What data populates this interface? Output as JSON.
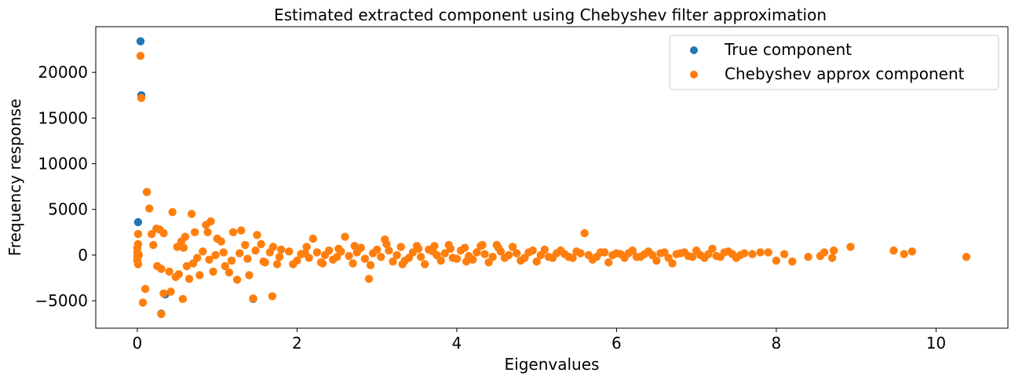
{
  "chart_data": {
    "type": "scatter",
    "title": "Estimated extracted component using Chebyshev filter approximation",
    "xlabel": "Eigenvalues",
    "ylabel": "Frequency response",
    "xlim": [
      -0.52,
      10.9
    ],
    "ylim": [
      -8000,
      25000
    ],
    "xticks": [
      0,
      2,
      4,
      6,
      8,
      10
    ],
    "yticks": [
      -5000,
      0,
      5000,
      10000,
      15000,
      20000
    ],
    "ytick_labels": [
      "−5000",
      "0",
      "5000",
      "10000",
      "15000",
      "20000"
    ],
    "grid": false,
    "legend_position": "top-right",
    "series": [
      {
        "name": "True component",
        "color": "#1f77b4",
        "points": [
          [
            0.04,
            23400
          ],
          [
            0.05,
            17500
          ],
          [
            0.12,
            6900
          ],
          [
            0.01,
            3600
          ],
          [
            0.35,
            -4300
          ],
          [
            1.45,
            -4800
          ],
          [
            0.3,
            -6400
          ]
        ]
      },
      {
        "name": "Chebyshev approx component",
        "color": "#ff7f0e",
        "points": [
          [
            0.04,
            21800
          ],
          [
            0.05,
            17200
          ],
          [
            0.12,
            6900
          ],
          [
            0.15,
            5100
          ],
          [
            0.01,
            2300
          ],
          [
            0.0,
            800
          ],
          [
            0.0,
            300
          ],
          [
            0.0,
            -200
          ],
          [
            0.0,
            -600
          ],
          [
            0.01,
            -1000
          ],
          [
            0.01,
            1200
          ],
          [
            0.02,
            0
          ],
          [
            0.07,
            -5200
          ],
          [
            0.1,
            -3700
          ],
          [
            0.3,
            -6450
          ],
          [
            0.33,
            -4200
          ],
          [
            0.42,
            -4000
          ],
          [
            0.57,
            -4800
          ],
          [
            0.68,
            4500
          ],
          [
            0.44,
            4700
          ],
          [
            0.92,
            3700
          ],
          [
            0.86,
            3300
          ],
          [
            1.45,
            -4750
          ],
          [
            1.69,
            -4500
          ],
          [
            0.18,
            2300
          ],
          [
            0.24,
            2900
          ],
          [
            0.28,
            2800
          ],
          [
            0.33,
            2400
          ],
          [
            0.2,
            1100
          ],
          [
            0.25,
            -1200
          ],
          [
            0.3,
            -1500
          ],
          [
            0.5,
            900
          ],
          [
            0.55,
            1500
          ],
          [
            0.6,
            2000
          ],
          [
            0.65,
            -2600
          ],
          [
            0.72,
            2500
          ],
          [
            0.78,
            -2200
          ],
          [
            0.88,
            2500
          ],
          [
            0.95,
            -1800
          ],
          [
            1.0,
            1800
          ],
          [
            1.05,
            1500
          ],
          [
            1.1,
            -1200
          ],
          [
            1.15,
            -1900
          ],
          [
            1.2,
            2500
          ],
          [
            1.25,
            -2700
          ],
          [
            1.3,
            2700
          ],
          [
            1.35,
            1100
          ],
          [
            1.4,
            -2200
          ],
          [
            1.5,
            2200
          ],
          [
            1.55,
            1200
          ],
          [
            1.6,
            -800
          ],
          [
            1.7,
            900
          ],
          [
            1.75,
            -1000
          ],
          [
            1.8,
            600
          ],
          [
            0.4,
            -1800
          ],
          [
            0.48,
            -2400
          ],
          [
            0.52,
            -2100
          ],
          [
            0.58,
            800
          ],
          [
            0.62,
            -1200
          ],
          [
            0.7,
            -900
          ],
          [
            0.75,
            -300
          ],
          [
            0.82,
            400
          ],
          [
            0.9,
            -500
          ],
          [
            0.98,
            0
          ],
          [
            1.08,
            300
          ],
          [
            1.18,
            -600
          ],
          [
            1.28,
            200
          ],
          [
            1.38,
            -400
          ],
          [
            1.48,
            500
          ],
          [
            1.58,
            -700
          ],
          [
            1.66,
            300
          ],
          [
            1.78,
            -200
          ],
          [
            1.9,
            400
          ],
          [
            2.0,
            -600
          ],
          [
            2.1,
            200
          ],
          [
            2.2,
            1800
          ],
          [
            2.3,
            -800
          ],
          [
            2.4,
            500
          ],
          [
            2.5,
            -200
          ],
          [
            2.6,
            2000
          ],
          [
            2.7,
            -900
          ],
          [
            2.8,
            800
          ],
          [
            2.9,
            -2600
          ],
          [
            3.0,
            600
          ],
          [
            3.1,
            1700
          ],
          [
            3.2,
            -700
          ],
          [
            3.3,
            900
          ],
          [
            3.4,
            -300
          ],
          [
            3.5,
            1000
          ],
          [
            3.6,
            -1000
          ],
          [
            3.7,
            400
          ],
          [
            3.8,
            -600
          ],
          [
            3.9,
            1100
          ],
          [
            4.0,
            -400
          ],
          [
            4.1,
            800
          ],
          [
            4.2,
            -500
          ],
          [
            4.3,
            1000
          ],
          [
            4.4,
            -800
          ],
          [
            4.5,
            1100
          ],
          [
            4.6,
            -300
          ],
          [
            4.7,
            900
          ],
          [
            4.8,
            -600
          ],
          [
            4.9,
            300
          ],
          [
            5.0,
            -700
          ],
          [
            5.1,
            600
          ],
          [
            5.2,
            -300
          ],
          [
            5.3,
            500
          ],
          [
            5.4,
            -200
          ],
          [
            5.5,
            400
          ],
          [
            5.6,
            2400
          ],
          [
            5.7,
            -500
          ],
          [
            5.8,
            300
          ],
          [
            5.9,
            -800
          ],
          [
            6.0,
            200
          ],
          [
            6.1,
            -300
          ],
          [
            6.2,
            500
          ],
          [
            6.3,
            -200
          ],
          [
            6.4,
            400
          ],
          [
            6.5,
            -600
          ],
          [
            6.6,
            300
          ],
          [
            6.7,
            -900
          ],
          [
            6.8,
            200
          ],
          [
            6.9,
            -100
          ],
          [
            7.0,
            500
          ],
          [
            7.1,
            -300
          ],
          [
            7.2,
            700
          ],
          [
            7.3,
            -200
          ],
          [
            7.4,
            400
          ],
          [
            7.5,
            -300
          ],
          [
            7.6,
            200
          ],
          [
            7.7,
            100
          ],
          [
            7.8,
            300
          ],
          [
            7.9,
            300
          ],
          [
            8.0,
            -600
          ],
          [
            8.1,
            100
          ],
          [
            8.2,
            -700
          ],
          [
            8.4,
            -200
          ],
          [
            8.55,
            -100
          ],
          [
            8.6,
            300
          ],
          [
            8.7,
            -300
          ],
          [
            8.72,
            500
          ],
          [
            8.93,
            900
          ],
          [
            9.47,
            500
          ],
          [
            9.6,
            100
          ],
          [
            9.7,
            400
          ],
          [
            10.38,
            -200
          ],
          [
            2.05,
            100
          ],
          [
            2.15,
            -300
          ],
          [
            2.25,
            300
          ],
          [
            2.35,
            0
          ],
          [
            2.45,
            -500
          ],
          [
            2.55,
            400
          ],
          [
            2.65,
            -100
          ],
          [
            2.75,
            300
          ],
          [
            2.85,
            -400
          ],
          [
            2.95,
            200
          ],
          [
            3.05,
            -200
          ],
          [
            3.15,
            500
          ],
          [
            3.25,
            0
          ],
          [
            3.35,
            -600
          ],
          [
            3.45,
            300
          ],
          [
            3.55,
            -200
          ],
          [
            3.65,
            600
          ],
          [
            3.75,
            0
          ],
          [
            3.85,
            200
          ],
          [
            3.95,
            -300
          ],
          [
            4.05,
            500
          ],
          [
            4.15,
            -100
          ],
          [
            4.25,
            300
          ],
          [
            4.35,
            100
          ],
          [
            4.45,
            -200
          ],
          [
            4.55,
            400
          ],
          [
            4.65,
            0
          ],
          [
            4.75,
            200
          ],
          [
            4.85,
            -300
          ],
          [
            4.95,
            500
          ],
          [
            5.05,
            0
          ],
          [
            5.15,
            -200
          ],
          [
            5.25,
            200
          ],
          [
            5.35,
            100
          ],
          [
            5.45,
            -300
          ],
          [
            5.55,
            200
          ],
          [
            5.65,
            0
          ],
          [
            5.75,
            -200
          ],
          [
            5.85,
            300
          ],
          [
            5.95,
            0
          ],
          [
            6.05,
            100
          ],
          [
            6.15,
            200
          ],
          [
            6.25,
            -200
          ],
          [
            6.35,
            100
          ],
          [
            6.45,
            0
          ],
          [
            6.55,
            200
          ],
          [
            6.65,
            -300
          ],
          [
            6.75,
            100
          ],
          [
            6.85,
            300
          ],
          [
            6.95,
            -200
          ],
          [
            7.05,
            0
          ],
          [
            7.15,
            100
          ],
          [
            7.25,
            -100
          ],
          [
            7.35,
            300
          ],
          [
            7.45,
            100
          ],
          [
            7.55,
            0
          ],
          [
            1.95,
            -1000
          ],
          [
            2.12,
            900
          ],
          [
            2.32,
            -900
          ],
          [
            2.52,
            700
          ],
          [
            2.72,
            1000
          ],
          [
            2.92,
            -1100
          ],
          [
            3.12,
            1200
          ],
          [
            3.32,
            -1000
          ],
          [
            3.52,
            700
          ],
          [
            3.72,
            1000
          ],
          [
            3.92,
            700
          ],
          [
            4.12,
            -700
          ],
          [
            4.32,
            1100
          ],
          [
            4.52,
            800
          ]
        ]
      }
    ]
  }
}
